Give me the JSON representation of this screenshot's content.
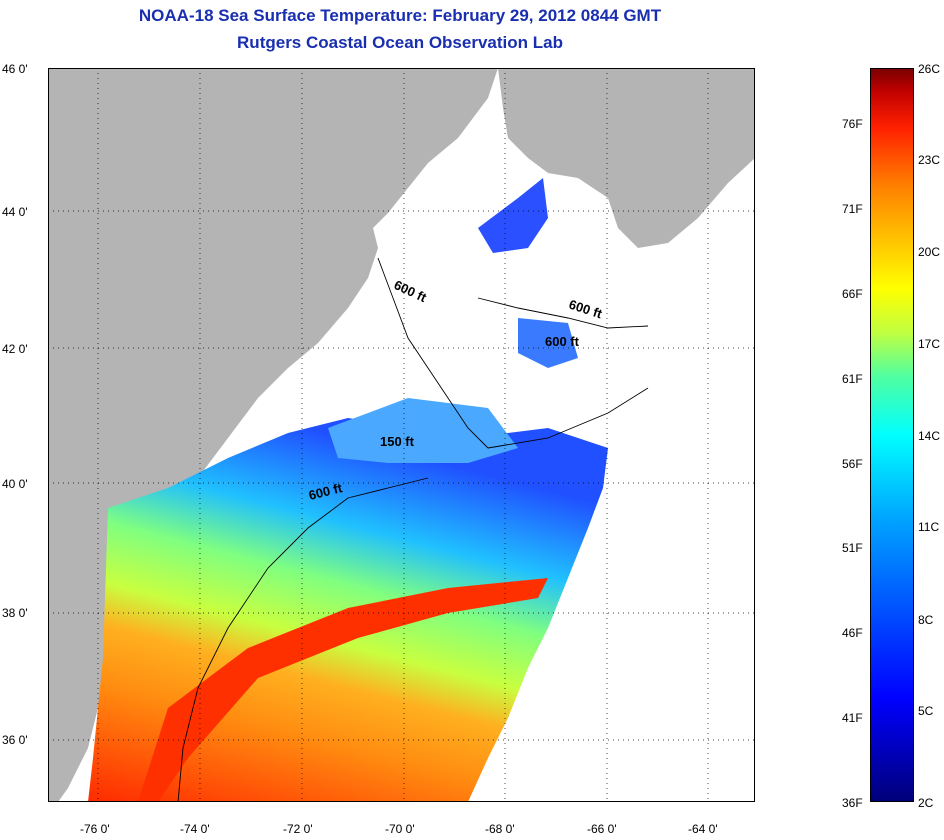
{
  "header": {
    "title": "NOAA-18 Sea Surface Temperature:  February 29, 2012 0844 GMT",
    "subtitle": "Rutgers Coastal Ocean Observation Lab"
  },
  "axes": {
    "latitude_labels": [
      "46 0'",
      "44 0'",
      "42 0'",
      "40 0'",
      "38 0'",
      "36 0'"
    ],
    "longitude_labels": [
      "-76 0'",
      "-74 0'",
      "-72 0'",
      "-70 0'",
      "-68 0'",
      "-66 0'",
      "-64 0'"
    ]
  },
  "colorbar": {
    "celsius_labels": [
      "26C",
      "23C",
      "20C",
      "17C",
      "14C",
      "11C",
      "8C",
      "5C",
      "2C"
    ],
    "fahrenheit_labels": [
      "76F",
      "71F",
      "66F",
      "61F",
      "56F",
      "51F",
      "46F",
      "41F",
      "36F"
    ],
    "range_c": [
      2,
      26
    ]
  },
  "contours": {
    "labels": [
      "600 ft",
      "600 ft",
      "600 ft",
      "150 ft",
      "600 ft"
    ]
  },
  "colors": {
    "title": "#1a2fb0",
    "land": "#b4b4b4",
    "no_data": "#ffffff"
  }
}
